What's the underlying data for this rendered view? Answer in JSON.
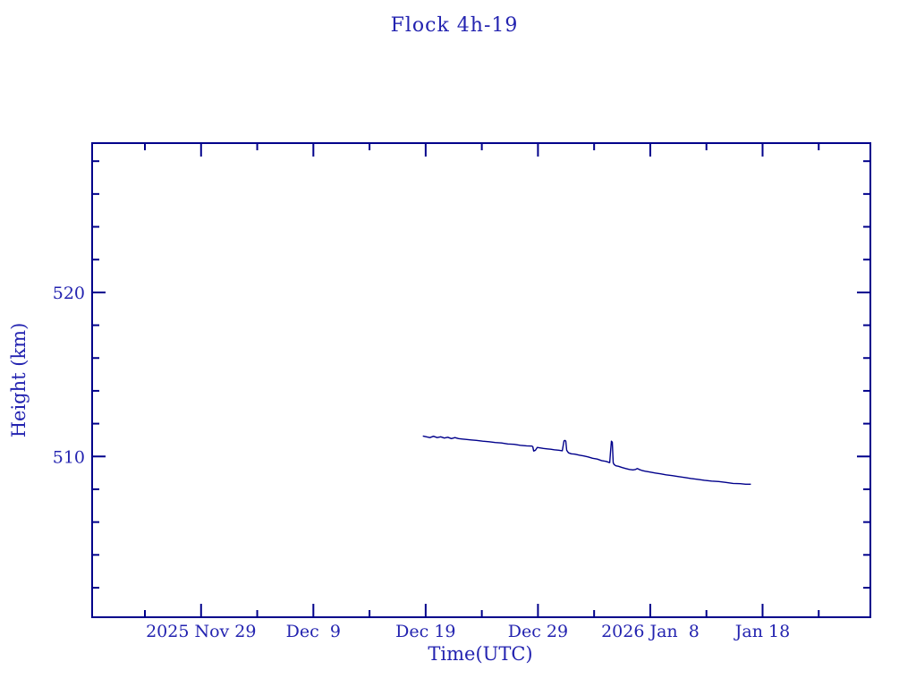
{
  "page": {
    "background": "#ffffff"
  },
  "chart_data": {
    "type": "line",
    "title": "Flock 4h-19",
    "xlabel": "Time(UTC)",
    "ylabel": "Height (km)",
    "legend": "none",
    "grid": "off",
    "colors": {
      "line": "#00008b",
      "frame": "#00008b",
      "text": "#2323b0"
    },
    "x_axis": {
      "unit": "days since 2025 Nov 29 00:00 UTC",
      "domain": [
        -9.7,
        59.6
      ],
      "major_ticks": [
        {
          "day": 0,
          "label": "2025 Nov 29"
        },
        {
          "day": 10,
          "label": "Dec  9"
        },
        {
          "day": 20,
          "label": "Dec 19"
        },
        {
          "day": 30,
          "label": "Dec 29"
        },
        {
          "day": 40,
          "label": "2026 Jan  8"
        },
        {
          "day": 50,
          "label": "Jan 18"
        }
      ],
      "minor_tick_days": [
        -5,
        5,
        15,
        25,
        35,
        45,
        55
      ]
    },
    "y_axis": {
      "unit": "km",
      "domain": [
        500.2,
        529.1
      ],
      "major_ticks": [
        {
          "km": 510,
          "label": "510"
        },
        {
          "km": 520,
          "label": "520"
        }
      ],
      "minor_tick_kms": [
        502,
        504,
        506,
        508,
        512,
        514,
        516,
        518,
        522,
        524,
        526,
        528
      ]
    },
    "series": [
      {
        "name": "height",
        "points": [
          [
            19.75,
            511.25
          ],
          [
            20.06,
            511.2
          ],
          [
            20.38,
            511.15
          ],
          [
            20.7,
            511.23
          ],
          [
            21.02,
            511.15
          ],
          [
            21.34,
            511.2
          ],
          [
            21.66,
            511.12
          ],
          [
            21.97,
            511.17
          ],
          [
            22.29,
            511.09
          ],
          [
            22.61,
            511.15
          ],
          [
            22.93,
            511.09
          ],
          [
            23.25,
            511.06
          ],
          [
            23.57,
            511.04
          ],
          [
            24.04,
            511.01
          ],
          [
            24.52,
            510.98
          ],
          [
            25.08,
            510.93
          ],
          [
            25.64,
            510.9
          ],
          [
            26.19,
            510.85
          ],
          [
            26.75,
            510.82
          ],
          [
            27.31,
            510.76
          ],
          [
            27.87,
            510.74
          ],
          [
            28.42,
            510.68
          ],
          [
            28.98,
            510.65
          ],
          [
            29.46,
            510.63
          ],
          [
            29.54,
            510.6
          ],
          [
            29.62,
            510.33
          ],
          [
            29.78,
            510.38
          ],
          [
            29.94,
            510.55
          ],
          [
            30.18,
            510.52
          ],
          [
            30.49,
            510.49
          ],
          [
            30.81,
            510.46
          ],
          [
            31.13,
            510.44
          ],
          [
            31.45,
            510.41
          ],
          [
            31.85,
            510.38
          ],
          [
            32.17,
            510.35
          ],
          [
            32.32,
            510.95
          ],
          [
            32.4,
            510.98
          ],
          [
            32.48,
            510.93
          ],
          [
            32.56,
            510.38
          ],
          [
            32.72,
            510.22
          ],
          [
            32.96,
            510.16
          ],
          [
            33.28,
            510.14
          ],
          [
            33.68,
            510.08
          ],
          [
            34.08,
            510.03
          ],
          [
            34.47,
            509.97
          ],
          [
            34.87,
            509.89
          ],
          [
            35.27,
            509.84
          ],
          [
            35.67,
            509.75
          ],
          [
            36.07,
            509.7
          ],
          [
            36.39,
            509.62
          ],
          [
            36.46,
            510.27
          ],
          [
            36.54,
            510.93
          ],
          [
            36.62,
            510.87
          ],
          [
            36.7,
            509.62
          ],
          [
            36.78,
            509.51
          ],
          [
            36.94,
            509.43
          ],
          [
            37.18,
            509.4
          ],
          [
            37.5,
            509.32
          ],
          [
            37.82,
            509.26
          ],
          [
            38.14,
            509.21
          ],
          [
            38.46,
            509.18
          ],
          [
            38.69,
            509.21
          ],
          [
            38.85,
            509.26
          ],
          [
            39.01,
            509.21
          ],
          [
            39.25,
            509.15
          ],
          [
            39.57,
            509.1
          ],
          [
            39.97,
            509.05
          ],
          [
            40.45,
            508.99
          ],
          [
            40.92,
            508.94
          ],
          [
            41.4,
            508.88
          ],
          [
            41.96,
            508.83
          ],
          [
            42.52,
            508.77
          ],
          [
            43.07,
            508.72
          ],
          [
            43.63,
            508.66
          ],
          [
            44.19,
            508.61
          ],
          [
            44.82,
            508.55
          ],
          [
            45.46,
            508.5
          ],
          [
            46.1,
            508.47
          ],
          [
            46.74,
            508.42
          ],
          [
            47.37,
            508.36
          ],
          [
            48.01,
            508.34
          ],
          [
            48.49,
            508.31
          ],
          [
            48.96,
            508.31
          ]
        ]
      }
    ]
  }
}
